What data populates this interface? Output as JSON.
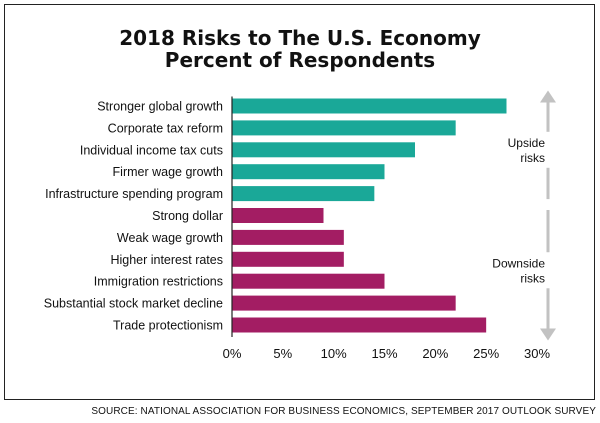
{
  "chart_data": {
    "type": "bar",
    "orientation": "horizontal",
    "title": "2018 Risks to The U.S. Economy",
    "subtitle": "Percent of Respondents",
    "categories": [
      "Stronger global growth",
      "Corporate tax reform",
      "Individual income tax cuts",
      "Firmer wage growth",
      "Infrastructure spending program",
      "Strong dollar",
      "Weak wage growth",
      "Higher interest rates",
      "Immigration restrictions",
      "Substantial stock market decline",
      "Trade protectionism"
    ],
    "values": [
      27,
      22,
      18,
      15,
      14,
      9,
      11,
      11,
      15,
      22,
      25
    ],
    "groups": [
      {
        "label_lines": [
          "Upside",
          "risks"
        ],
        "count": 5,
        "color": "#1aa898",
        "arrow": "up"
      },
      {
        "label_lines": [
          "Downside",
          "risks"
        ],
        "count": 6,
        "color": "#a31d63",
        "arrow": "down"
      }
    ],
    "xlim": [
      0,
      30
    ],
    "xticks": [
      "0%",
      "5%",
      "10%",
      "15%",
      "20%",
      "25%",
      "30%"
    ],
    "grid": false,
    "arrow_color": "#c2c2c2"
  },
  "source": "SOURCE: NATIONAL ASSOCIATION FOR BUSINESS ECONOMICS, SEPTEMBER 2017 OUTLOOK SURVEY"
}
